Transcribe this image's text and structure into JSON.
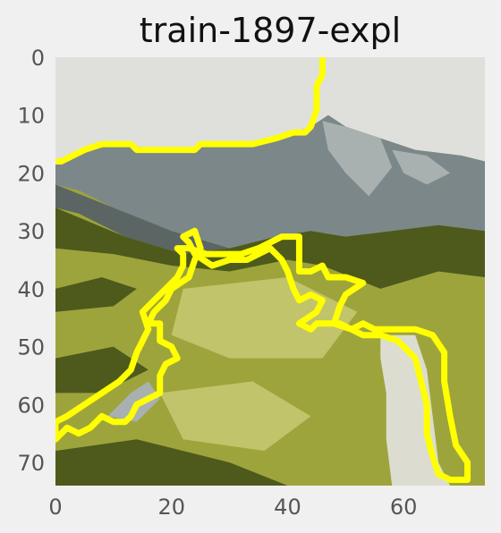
{
  "figure": {
    "background": "#f0f0f0"
  },
  "chart_data": {
    "type": "heatmap",
    "title": "train-1897-expl",
    "xlabel": "",
    "ylabel": "",
    "xlim": [
      0,
      74
    ],
    "ylim": [
      74,
      0
    ],
    "x_ticks": [
      0,
      20,
      40,
      60
    ],
    "y_ticks": [
      0,
      10,
      20,
      30,
      40,
      50,
      60,
      70
    ],
    "grid": false,
    "legend": "none",
    "image_palette": {
      "sky": "#dfe0dc",
      "mountain": "#7c878a",
      "mountain_light": "#a9b0b0",
      "mountain_dark": "#5b6563",
      "forest": "#4d5a1c",
      "meadow": "#9ea43c",
      "meadow_light": "#c1c46a",
      "path": "#dcddd0"
    },
    "outline_color": "#ffff00",
    "explanation_outline": [
      [
        46,
        0
      ],
      [
        46,
        3
      ],
      [
        45,
        5
      ],
      [
        45,
        9
      ],
      [
        44,
        12
      ],
      [
        43,
        13
      ],
      [
        41,
        13
      ],
      [
        38,
        14
      ],
      [
        34,
        15
      ],
      [
        30,
        15
      ],
      [
        25,
        15
      ],
      [
        24,
        16
      ],
      [
        20,
        16
      ],
      [
        18,
        16
      ],
      [
        14,
        16
      ],
      [
        13,
        15
      ],
      [
        8,
        15
      ],
      [
        5,
        16
      ],
      [
        3,
        17
      ],
      [
        1,
        18
      ],
      [
        0,
        18
      ]
    ],
    "explanation_region": [
      [
        40,
        31
      ],
      [
        42,
        31
      ],
      [
        42,
        37
      ],
      [
        44,
        37
      ],
      [
        46,
        36
      ],
      [
        47,
        38
      ],
      [
        50,
        38
      ],
      [
        53,
        39
      ],
      [
        50,
        41
      ],
      [
        49,
        43
      ],
      [
        48,
        46
      ],
      [
        51,
        47
      ],
      [
        53,
        46
      ],
      [
        55,
        47
      ],
      [
        58,
        47
      ],
      [
        62,
        47
      ],
      [
        65,
        48
      ],
      [
        67,
        51
      ],
      [
        67,
        56
      ],
      [
        68,
        62
      ],
      [
        69,
        67
      ],
      [
        71,
        70
      ],
      [
        71,
        73
      ],
      [
        68,
        73
      ],
      [
        66,
        72
      ],
      [
        65,
        69
      ],
      [
        64,
        65
      ],
      [
        64,
        60
      ],
      [
        63,
        56
      ],
      [
        62,
        52
      ],
      [
        59,
        49
      ],
      [
        56,
        48
      ],
      [
        53,
        48
      ],
      [
        51,
        47
      ],
      [
        49,
        46
      ],
      [
        45,
        46
      ],
      [
        44,
        47
      ],
      [
        42,
        46
      ],
      [
        45,
        44
      ],
      [
        46,
        42
      ],
      [
        44,
        41
      ],
      [
        42,
        42
      ],
      [
        41,
        40
      ],
      [
        40,
        37
      ],
      [
        39,
        35
      ],
      [
        37,
        33
      ],
      [
        33,
        35
      ],
      [
        30,
        35
      ],
      [
        27,
        36
      ],
      [
        24,
        34
      ],
      [
        23,
        32
      ],
      [
        22,
        31
      ],
      [
        24,
        30
      ],
      [
        25,
        33
      ],
      [
        24,
        35
      ],
      [
        23,
        38
      ],
      [
        20,
        40
      ],
      [
        19,
        42
      ],
      [
        17,
        44
      ],
      [
        16,
        46
      ],
      [
        18,
        46
      ],
      [
        18,
        49
      ],
      [
        20,
        50
      ],
      [
        21,
        52
      ],
      [
        19,
        53
      ],
      [
        18,
        55
      ],
      [
        18,
        58
      ],
      [
        16,
        59
      ],
      [
        14,
        60
      ],
      [
        13,
        62
      ],
      [
        12,
        63
      ],
      [
        10,
        63
      ],
      [
        8,
        62
      ],
      [
        6,
        64
      ],
      [
        4,
        65
      ],
      [
        2,
        64
      ],
      [
        1,
        65
      ],
      [
        0,
        66
      ],
      [
        0,
        63
      ],
      [
        2,
        62
      ],
      [
        5,
        60
      ],
      [
        8,
        58
      ],
      [
        11,
        56
      ],
      [
        13,
        54
      ],
      [
        14,
        51
      ],
      [
        15,
        49
      ],
      [
        16,
        47
      ],
      [
        15,
        44
      ],
      [
        17,
        42
      ],
      [
        19,
        40
      ],
      [
        21,
        38
      ],
      [
        22,
        36
      ],
      [
        22,
        34
      ],
      [
        21,
        33
      ],
      [
        23,
        33
      ],
      [
        26,
        34
      ],
      [
        29,
        34
      ],
      [
        32,
        34
      ],
      [
        35,
        33
      ],
      [
        37,
        32
      ],
      [
        39,
        31
      ]
    ]
  }
}
